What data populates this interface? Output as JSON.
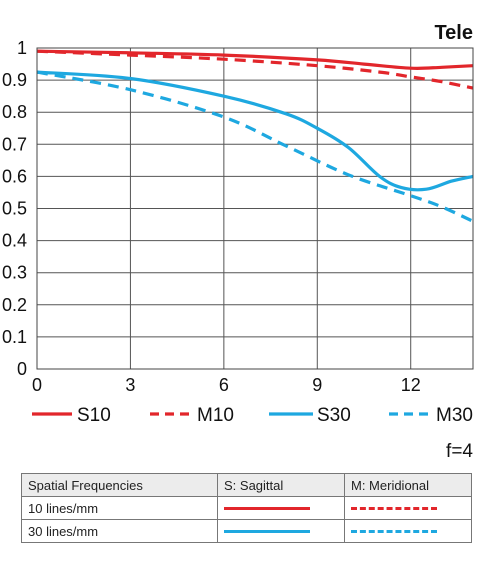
{
  "chart_data": {
    "type": "line",
    "corner_title": "Tele",
    "xlim": [
      0,
      14
    ],
    "ylim": [
      0,
      1
    ],
    "x_ticks": [
      "0",
      "3",
      "6",
      "9",
      "12"
    ],
    "x_tick_values": [
      0,
      3,
      6,
      9,
      12
    ],
    "y_ticks": [
      "0",
      "0.1",
      "0.2",
      "0.3",
      "0.4",
      "0.5",
      "0.6",
      "0.7",
      "0.8",
      "0.9",
      "1"
    ],
    "y_tick_values": [
      0,
      0.1,
      0.2,
      0.3,
      0.4,
      0.5,
      0.6,
      0.7,
      0.8,
      0.9,
      1.0
    ],
    "grid": true,
    "legend_position": "bottom",
    "series": [
      {
        "name": "S10",
        "color": "#e2262b",
        "dash": "solid",
        "points": [
          [
            0,
            0.99
          ],
          [
            3,
            0.985
          ],
          [
            6,
            0.978
          ],
          [
            9,
            0.963
          ],
          [
            10.5,
            0.95
          ],
          [
            12,
            0.937
          ],
          [
            13,
            0.94
          ],
          [
            14,
            0.945
          ]
        ]
      },
      {
        "name": "M10",
        "color": "#e2262b",
        "dash": "dashed",
        "points": [
          [
            0,
            0.99
          ],
          [
            3,
            0.978
          ],
          [
            6,
            0.965
          ],
          [
            9,
            0.945
          ],
          [
            11,
            0.925
          ],
          [
            12,
            0.91
          ],
          [
            13,
            0.895
          ],
          [
            14,
            0.875
          ]
        ]
      },
      {
        "name": "S30",
        "color": "#1ea8e0",
        "dash": "solid",
        "points": [
          [
            0,
            0.925
          ],
          [
            3,
            0.905
          ],
          [
            6,
            0.85
          ],
          [
            8,
            0.795
          ],
          [
            9,
            0.75
          ],
          [
            10,
            0.69
          ],
          [
            11,
            0.6
          ],
          [
            11.7,
            0.565
          ],
          [
            12.5,
            0.56
          ],
          [
            13.3,
            0.585
          ],
          [
            14,
            0.6
          ]
        ]
      },
      {
        "name": "M30",
        "color": "#1ea8e0",
        "dash": "dashed",
        "points": [
          [
            0,
            0.925
          ],
          [
            3,
            0.87
          ],
          [
            6,
            0.785
          ],
          [
            8,
            0.695
          ],
          [
            10,
            0.605
          ],
          [
            12,
            0.54
          ],
          [
            13,
            0.505
          ],
          [
            14,
            0.46
          ]
        ]
      }
    ],
    "annotation": "f=4"
  },
  "table": {
    "header": [
      "Spatial Frequencies",
      "S: Sagittal",
      "M: Meridional"
    ],
    "rows": [
      {
        "label": "10 lines/mm",
        "sagittal_color": "#e2262b",
        "meridional_color": "#e2262b"
      },
      {
        "label": "30 lines/mm",
        "sagittal_color": "#1ea8e0",
        "meridional_color": "#1ea8e0"
      }
    ]
  }
}
